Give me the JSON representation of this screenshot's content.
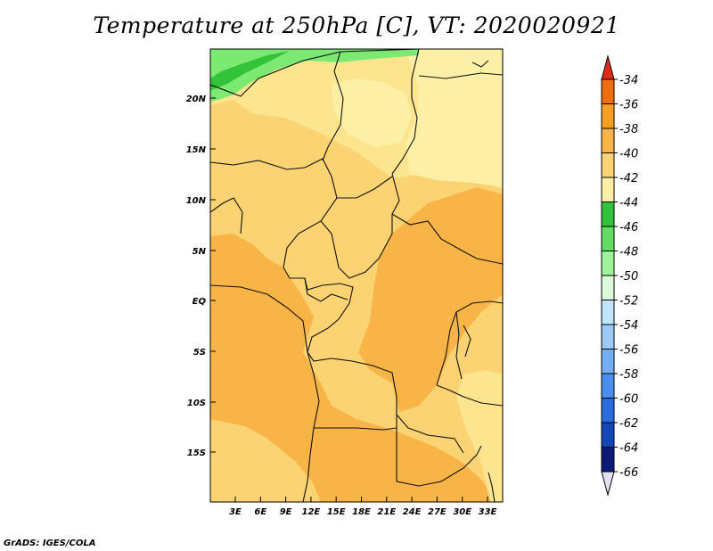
{
  "title": "Temperature at 250hPa [C], VT: 2020020921",
  "credit": "GrADS: IGES/COLA",
  "lat_labels": [
    "20N",
    "15N",
    "10N",
    "5N",
    "EQ",
    "5S",
    "10S",
    "15S"
  ],
  "lon_labels": [
    "3E",
    "6E",
    "9E",
    "12E",
    "15E",
    "18E",
    "21E",
    "24E",
    "27E",
    "30E",
    "33E"
  ],
  "colorbar": {
    "labels": [
      "-34",
      "-36",
      "-38",
      "-40",
      "-42",
      "-44",
      "-46",
      "-48",
      "-50",
      "-52",
      "-54",
      "-56",
      "-58",
      "-60",
      "-62",
      "-64",
      "-66"
    ],
    "colors": [
      "#e8491a",
      "#f06d10",
      "#f5a022",
      "#f8b447",
      "#fbd373",
      "#fdf0a6",
      "#32c33a",
      "#62dd62",
      "#9ef29a",
      "#dcfad9",
      "#bfe5fb",
      "#9ccaf7",
      "#73aef5",
      "#4a8ef0",
      "#2a6cde",
      "#1248b5",
      "#0c1a78"
    ],
    "top_color": "#e02a1a",
    "bottom_color": "#e2e0f2"
  },
  "field_colors": {
    "c36": "#f8b447",
    "c38": "#fbd373",
    "c40": "#fde48f",
    "c42": "#fdf0a6",
    "c44": "#32c33a",
    "c46": "#7cea72"
  }
}
